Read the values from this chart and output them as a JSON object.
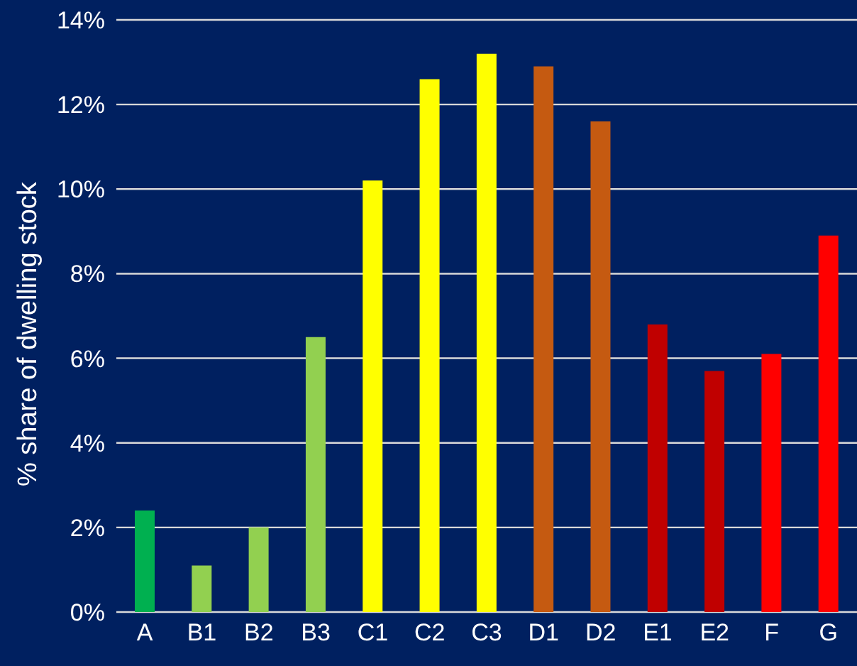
{
  "chart_data": {
    "type": "bar",
    "ylabel": "% share of dwelling stock",
    "categories": [
      "A",
      "B1",
      "B2",
      "B3",
      "C1",
      "C2",
      "C3",
      "D1",
      "D2",
      "E1",
      "E2",
      "F",
      "G"
    ],
    "values": [
      2.4,
      1.1,
      2.0,
      6.5,
      10.2,
      12.6,
      13.2,
      12.9,
      11.6,
      6.8,
      5.7,
      6.1,
      8.9
    ],
    "colors": [
      "#00b050",
      "#92d050",
      "#92d050",
      "#92d050",
      "#ffff00",
      "#ffff00",
      "#ffff00",
      "#c55a11",
      "#c55a11",
      "#c00000",
      "#c00000",
      "#ff0000",
      "#ff0000"
    ],
    "ylim": [
      0,
      14
    ],
    "yticks": [
      {
        "value": 0,
        "label": "0%"
      },
      {
        "value": 2,
        "label": "2%"
      },
      {
        "value": 4,
        "label": "4%"
      },
      {
        "value": 6,
        "label": "6%"
      },
      {
        "value": 8,
        "label": "8%"
      },
      {
        "value": 10,
        "label": "10%"
      },
      {
        "value": 12,
        "label": "12%"
      },
      {
        "value": 14,
        "label": "14%"
      }
    ],
    "grid": "y"
  }
}
